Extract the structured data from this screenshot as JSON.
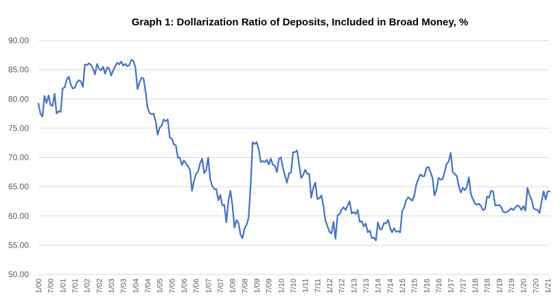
{
  "chart_data": {
    "type": "line",
    "title": "Graph 1: Dollarization  Ratio of Deposits,  Included  in Broad Money, %",
    "xlabel": "",
    "ylabel": "",
    "ylim": [
      50,
      90
    ],
    "yticks": [
      "50.00",
      "55.00",
      "60.00",
      "65.00",
      "70.00",
      "75.00",
      "80.00",
      "85.00",
      "90.00"
    ],
    "xticks": [
      "1/00",
      "7/00",
      "1/01",
      "7/01",
      "1/02",
      "7/02",
      "1/03",
      "7/03",
      "1/04",
      "7/04",
      "1/05",
      "7/05",
      "1/06",
      "7/06",
      "1/07",
      "7/07",
      "1/08",
      "7/08",
      "1/09",
      "7/09",
      "1/10",
      "7/10",
      "1/11",
      "7/11",
      "1/12",
      "7/12",
      "1/13",
      "7/13",
      "1/14",
      "7/14",
      "1/15",
      "7/15",
      "1/16",
      "7/16",
      "1/17",
      "7/17",
      "1/18",
      "7/18",
      "1/19",
      "7/19",
      "1/20",
      "7/20",
      "1/21"
    ],
    "grid": "horizontal",
    "legend": "none",
    "line_color": "#4472c4",
    "series": [
      {
        "x_start": "1/00",
        "frequency": "monthly",
        "values": [
          79.2,
          77.5,
          77.0,
          80.5,
          79.3,
          80.6,
          79.0,
          78.8,
          80.9,
          77.5,
          77.9,
          77.8,
          81.8,
          82.0,
          83.3,
          83.8,
          82.5,
          81.8,
          81.9,
          82.8,
          83.2,
          83.0,
          82.1,
          85.9,
          85.8,
          86.1,
          85.8,
          85.2,
          84.2,
          86.0,
          85.1,
          84.9,
          85.5,
          84.3,
          85.4,
          85.2,
          84.0,
          84.9,
          85.6,
          86.2,
          85.9,
          86.4,
          85.7,
          86.0,
          85.6,
          85.8,
          86.7,
          86.5,
          85.4,
          81.7,
          82.8,
          83.6,
          83.5,
          81.3,
          78.5,
          77.6,
          77.4,
          77.5,
          76.2,
          73.9,
          75.1,
          75.4,
          76.5,
          76.2,
          76.5,
          73.4,
          73.2,
          72.2,
          72.1,
          69.9,
          70.0,
          68.7,
          69.5,
          69.0,
          68.5,
          67.9,
          64.3,
          66.0,
          67.2,
          67.6,
          69.0,
          69.8,
          67.3,
          67.8,
          70.0,
          66.3,
          65.1,
          64.6,
          64.6,
          62.7,
          63.6,
          61.8,
          61.9,
          58.9,
          62.5,
          64.3,
          61.8,
          58.0,
          59.3,
          58.8,
          56.8,
          56.2,
          57.9,
          58.5,
          59.7,
          65.2,
          72.6,
          72.3,
          72.6,
          71.4,
          69.2,
          69.4,
          69.2,
          69.6,
          68.8,
          69.8,
          68.7,
          68.6,
          67.5,
          69.8,
          70.0,
          68.2,
          66.9,
          65.7,
          67.3,
          67.4,
          70.9,
          70.9,
          71.2,
          68.8,
          66.5,
          67.0,
          67.9,
          67.2,
          67.2,
          63.1,
          64.8,
          65.7,
          62.9,
          63.0,
          63.5,
          61.8,
          59.2,
          58.3,
          57.3,
          57.0,
          59.0,
          56.1,
          60.1,
          60.3,
          61.1,
          61.5,
          61.0,
          61.8,
          62.5,
          60.4,
          60.7,
          60.3,
          61.0,
          59.0,
          59.1,
          58.2,
          58.7,
          57.2,
          57.5,
          56.2,
          56.3,
          55.8,
          58.9,
          57.7,
          57.8,
          58.8,
          58.7,
          59.3,
          58.0,
          57.2,
          57.9,
          57.3,
          57.4,
          57.2,
          60.8,
          61.5,
          62.7,
          63.2,
          62.9,
          62.6,
          63.5,
          65.4,
          66.3,
          67.1,
          66.8,
          66.8,
          68.2,
          68.4,
          67.5,
          66.5,
          63.5,
          64.5,
          66.5,
          66.2,
          66.3,
          67.5,
          68.9,
          69.3,
          70.8,
          67.5,
          67.2,
          66.8,
          65.1,
          64.0,
          64.8,
          64.4,
          65.0,
          66.6,
          63.7,
          62.9,
          62.1,
          61.9,
          62.1,
          61.7,
          61.0,
          61.2,
          63.3,
          63.1,
          64.3,
          64.2,
          61.8,
          61.8,
          61.9,
          61.5,
          60.7,
          60.6,
          60.7,
          61.0,
          61.3,
          61.0,
          61.5,
          61.8,
          61.6,
          61.0,
          61.7,
          60.9,
          64.8,
          63.6,
          62.8,
          61.3,
          61.1,
          61.0,
          60.5,
          62.5,
          64.2,
          62.8,
          64.2,
          64.2
        ]
      }
    ]
  }
}
